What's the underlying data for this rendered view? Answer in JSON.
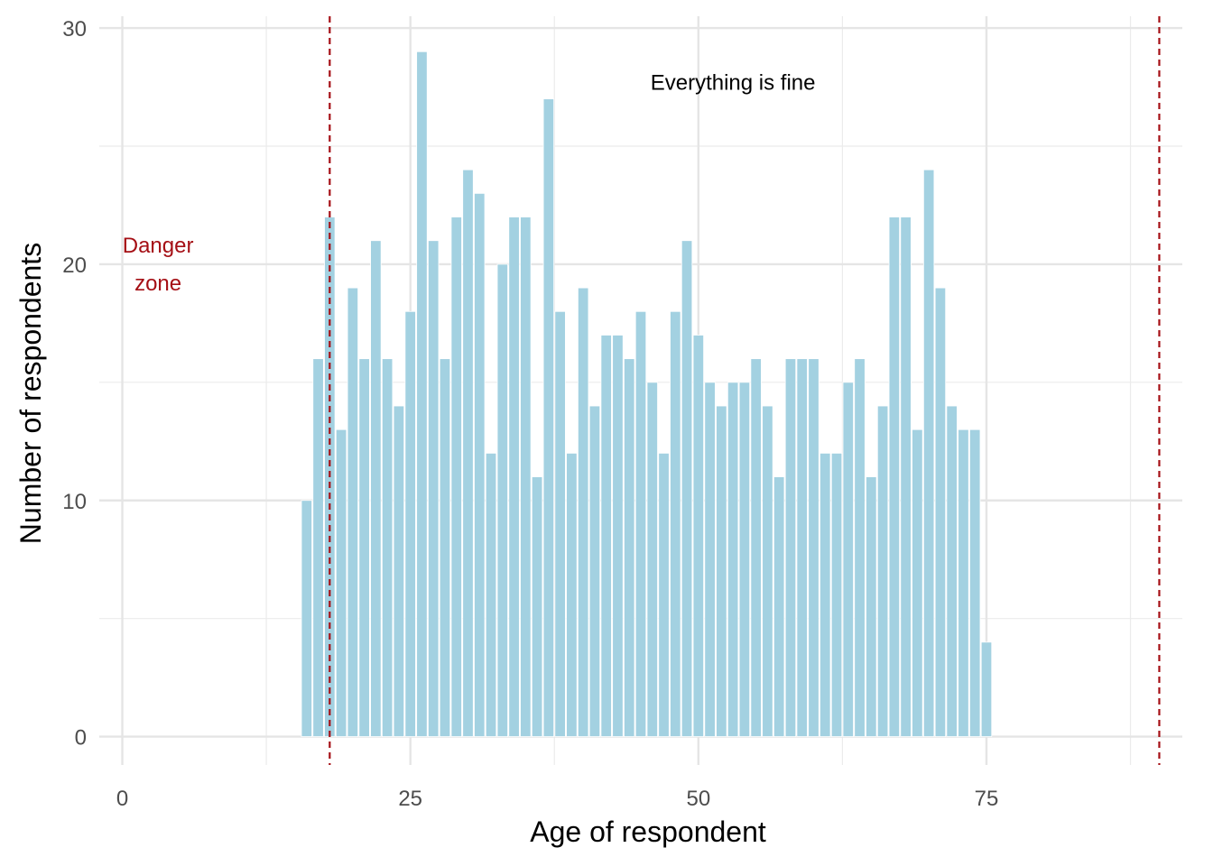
{
  "chart_data": {
    "type": "bar",
    "xlabel": "Age of respondent",
    "ylabel": "Number of respondents",
    "xlim": [
      -2,
      92
    ],
    "ylim": [
      -1.2,
      30.5
    ],
    "x_ticks": [
      "0",
      "25",
      "50",
      "75"
    ],
    "x_tick_values": [
      0,
      25,
      50,
      75
    ],
    "y_ticks": [
      "0",
      "10",
      "20",
      "30"
    ],
    "y_tick_values": [
      0,
      10,
      20,
      30
    ],
    "grid": true,
    "bar_color": "#a3d1e1",
    "reference_line_color": "#a50f15",
    "series": [
      {
        "x": [
          16,
          17,
          18,
          19,
          20,
          21,
          22,
          23,
          24,
          25,
          26,
          27,
          28,
          29,
          30,
          31,
          32,
          33,
          34,
          35,
          36,
          37,
          38,
          39,
          40,
          41,
          42,
          43,
          44,
          45,
          46,
          47,
          48,
          49,
          50,
          51,
          52,
          53,
          54,
          55,
          56,
          57,
          58,
          59,
          60,
          61,
          62,
          63,
          64,
          65,
          66,
          67,
          68,
          69,
          70,
          71,
          72,
          73,
          74,
          75
        ],
        "values": [
          10,
          16,
          22,
          13,
          19,
          16,
          21,
          16,
          14,
          18,
          29,
          21,
          16,
          22,
          24,
          23,
          12,
          20,
          22,
          22,
          11,
          27,
          18,
          12,
          19,
          14,
          17,
          17,
          16,
          18,
          15,
          12,
          18,
          21,
          17,
          15,
          14,
          15,
          15,
          16,
          14,
          11,
          16,
          16,
          16,
          12,
          12,
          15,
          16,
          11,
          14,
          22,
          22,
          13,
          24,
          19,
          14,
          13,
          13,
          4
        ]
      }
    ],
    "reference_lines": [
      {
        "axis": "x",
        "value": 18
      },
      {
        "axis": "x",
        "value": 90
      }
    ],
    "annotations": [
      {
        "text_lines": [
          "Danger",
          "zone"
        ],
        "x": 3.1,
        "y": 20,
        "color": "#a50f15"
      },
      {
        "text_lines": [
          "Everything is fine"
        ],
        "x": 53,
        "y": 27.7,
        "color": "#000000"
      }
    ]
  }
}
